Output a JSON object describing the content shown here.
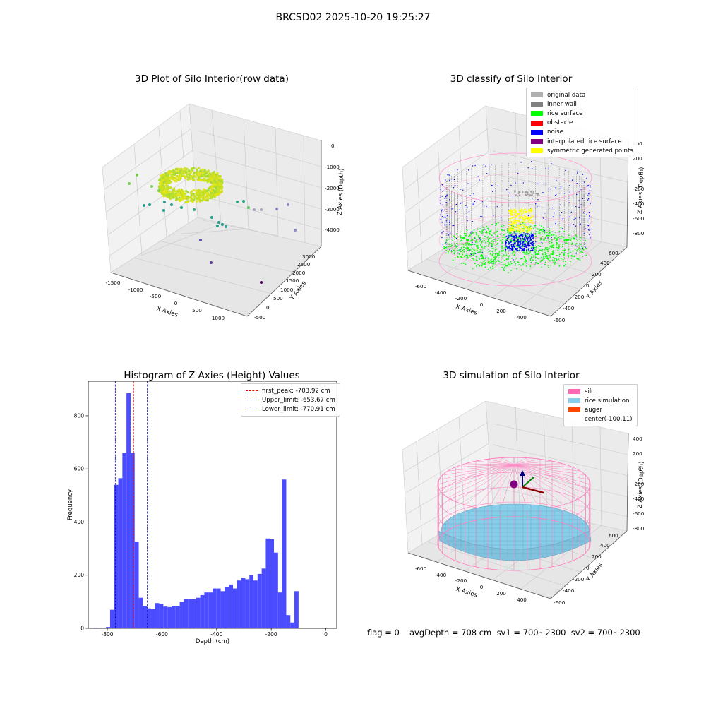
{
  "figure": {
    "suptitle": "BRCSD02 2025-10-20 19:25:27"
  },
  "colors": {
    "rice_surface": "#00ff00",
    "noise": "#0000ff",
    "inner_wall": "#808080",
    "symmetric": "#ffff00",
    "silo": "#ff69b4",
    "rice_sim": "#87ceeb",
    "auger": "#ff4500",
    "hist_bar": "#4b4bff"
  },
  "footer": {
    "flag": "flag = 0",
    "stats": "avgDepth = 708 cm  sv1 = 700~2300  sv2 = 700~2300"
  },
  "chart_data": [
    {
      "type": "scatter",
      "title": "3D Plot of Silo Interior(row data)",
      "xlabel": "X Axies",
      "ylabel": "Y Axies",
      "zlabel": "Z Axies (Depth)",
      "x_ticks": [
        "-1500",
        "-1000",
        "-500",
        "0",
        "500",
        "1000"
      ],
      "y_ticks": [
        "-500",
        "0",
        "500",
        "1000",
        "1500",
        "2000",
        "2500",
        "3000"
      ],
      "z_ticks": [
        "0",
        "-1000",
        "-2000",
        "-3000",
        "-4000"
      ],
      "colormap": "viridis",
      "grid": true
    },
    {
      "type": "scatter",
      "title": "3D classify of Silo Interior",
      "xlabel": "X Axies",
      "ylabel": "Y Axies",
      "zlabel": "Z Axies (Depth)",
      "x_ticks": [
        "-600",
        "-400",
        "-200",
        "0",
        "200",
        "400"
      ],
      "y_ticks": [
        "-600",
        "-400",
        "-200",
        "0",
        "200",
        "400",
        "600"
      ],
      "z_ticks": [
        "400",
        "200",
        "0",
        "-200",
        "-400",
        "-600",
        "-800"
      ],
      "legend": [
        {
          "label": "original data",
          "color": "#b0b0b0"
        },
        {
          "label": "inner wall",
          "color": "#808080"
        },
        {
          "label": "rice surface",
          "color": "#00ff00"
        },
        {
          "label": "obstacle",
          "color": "#ff0000"
        },
        {
          "label": "noise",
          "color": "#0000ff"
        },
        {
          "label": "interpolated rice surface",
          "color": "#800080"
        },
        {
          "label": "symmetric generated points",
          "color": "#ffff00"
        }
      ],
      "legend_position": "top-right",
      "grid": true
    },
    {
      "type": "bar",
      "title": "Histogram of Z-Axies (Height) Values",
      "xlabel": "Depth (cm)",
      "ylabel": "Frequency",
      "xlim": [
        -870,
        40
      ],
      "ylim": [
        0,
        930
      ],
      "x_ticks": [
        "-800",
        "-600",
        "-400",
        "-200",
        "0"
      ],
      "y_ticks": [
        "0",
        "200",
        "400",
        "600",
        "800"
      ],
      "bin_width": 15,
      "bin_start": -850,
      "values": [
        2,
        1,
        2,
        5,
        70,
        540,
        565,
        660,
        885,
        660,
        325,
        115,
        85,
        75,
        72,
        95,
        92,
        82,
        80,
        85,
        85,
        100,
        110,
        110,
        110,
        115,
        125,
        135,
        135,
        150,
        150,
        140,
        155,
        165,
        150,
        180,
        190,
        185,
        200,
        180,
        205,
        225,
        338,
        335,
        285,
        135,
        560,
        50,
        22,
        140
      ],
      "vlines": [
        {
          "label": "first_peak: -703.92 cm",
          "value": -703.92,
          "color": "#ff0000"
        },
        {
          "label": "Upper_limit: -653.67 cm",
          "value": -653.67,
          "color": "#0000b0"
        },
        {
          "label": "Lower_limit: -770.91 cm",
          "value": -770.91,
          "color": "#0000b0"
        }
      ],
      "legend_position": "top-right"
    },
    {
      "type": "scatter",
      "title": "3D simulation of Silo Interior",
      "xlabel": "X Axies",
      "ylabel": "Y Axies",
      "zlabel": "Z Axies (Depth)",
      "x_ticks": [
        "-600",
        "-400",
        "-200",
        "0",
        "200",
        "400"
      ],
      "y_ticks": [
        "-600",
        "-400",
        "-200",
        "0",
        "200",
        "400",
        "600"
      ],
      "z_ticks": [
        "400",
        "200",
        "0",
        "-200",
        "-400",
        "-600",
        "-800"
      ],
      "legend": [
        {
          "label": "silo",
          "color": "#ff69b4"
        },
        {
          "label": "rice simulation",
          "color": "#87ceeb"
        },
        {
          "label": "auger",
          "color": "#ff4500"
        },
        {
          "label": "center(-100,11)",
          "color": ""
        }
      ],
      "legend_position": "top-right",
      "grid": true
    }
  ]
}
